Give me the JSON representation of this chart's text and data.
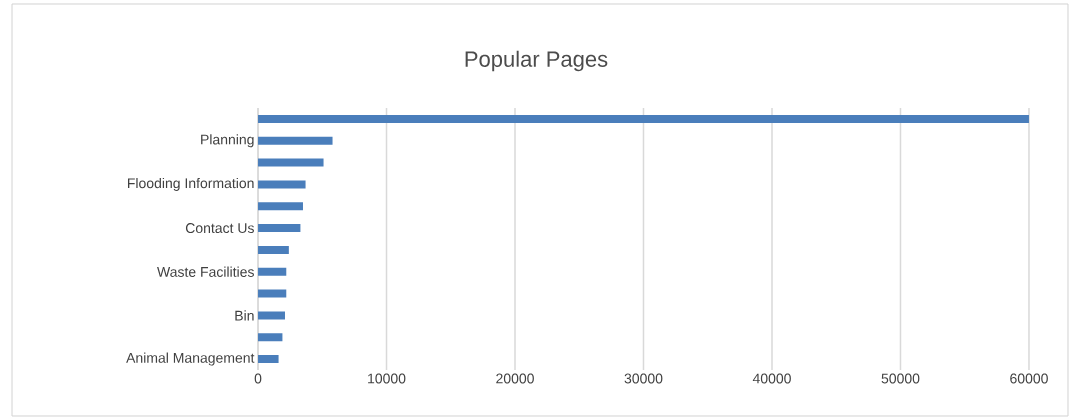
{
  "chart_data": {
    "type": "bar",
    "orientation": "horizontal",
    "title": "Popular Pages",
    "categories": [
      null,
      "Planning",
      null,
      "Flooding Information",
      null,
      "Contact Us",
      null,
      "Waste Facilities",
      null,
      "Bin",
      null,
      "Animal Management"
    ],
    "values": [
      60000,
      5800,
      5100,
      3700,
      3500,
      3300,
      2400,
      2200,
      2200,
      2100,
      1900,
      1600
    ],
    "color": "#4a7ebb",
    "xlim": [
      0,
      60000
    ],
    "xticks": [
      0,
      10000,
      20000,
      30000,
      40000,
      50000,
      60000
    ],
    "grid": "x"
  }
}
